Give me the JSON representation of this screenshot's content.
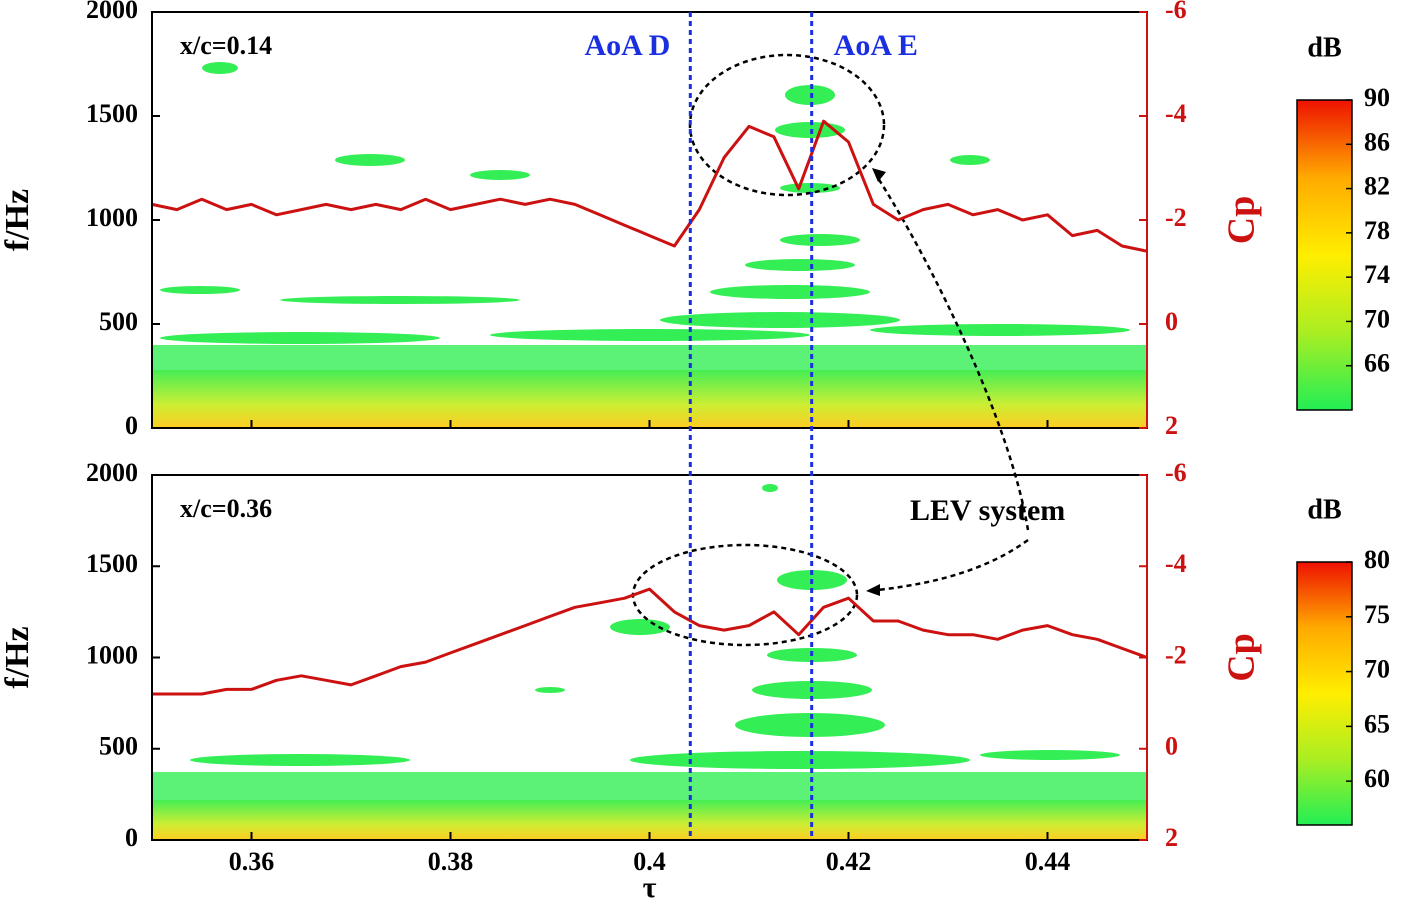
{
  "chart_data": [
    {
      "type": "spectrogram",
      "label": "x/c=0.14",
      "ylabel": "f/Hz",
      "y2label": "Cp",
      "xlim": [
        0.35,
        0.45
      ],
      "xticks": [
        0.36,
        0.38,
        0.4,
        0.42,
        0.44
      ],
      "ylim": [
        0,
        2000
      ],
      "yticks": [
        0,
        500,
        1000,
        1500,
        2000
      ],
      "y2lim": [
        2,
        -6
      ],
      "y2ticks": [
        2,
        0,
        -2,
        -4,
        -6
      ],
      "markers": [
        {
          "label": "AoA D",
          "x": 0.4041,
          "color": "#1a2fe0"
        },
        {
          "label": "AoA E",
          "x": 0.4163,
          "color": "#1a2fe0"
        }
      ],
      "series": [
        {
          "name": "Cp",
          "color": "#cc1111",
          "axis": "y2",
          "x": [
            0.35,
            0.3525,
            0.355,
            0.3575,
            0.36,
            0.3625,
            0.365,
            0.3675,
            0.37,
            0.3725,
            0.375,
            0.3775,
            0.38,
            0.3825,
            0.385,
            0.3875,
            0.39,
            0.3925,
            0.395,
            0.3975,
            0.4,
            0.4025,
            0.405,
            0.4075,
            0.41,
            0.4125,
            0.415,
            0.4175,
            0.42,
            0.4225,
            0.425,
            0.4275,
            0.43,
            0.4325,
            0.435,
            0.4375,
            0.44,
            0.4425,
            0.445,
            0.4475,
            0.45
          ],
          "values": [
            -2.3,
            -2.2,
            -2.4,
            -2.2,
            -2.3,
            -2.1,
            -2.2,
            -2.3,
            -2.2,
            -2.3,
            -2.2,
            -2.4,
            -2.2,
            -2.3,
            -2.4,
            -2.3,
            -2.4,
            -2.3,
            -2.1,
            -1.9,
            -1.7,
            -1.5,
            -2.2,
            -3.2,
            -3.8,
            -3.6,
            -2.6,
            -3.9,
            -3.5,
            -2.3,
            -2.0,
            -2.2,
            -2.3,
            -2.1,
            -2.2,
            -2.0,
            -2.1,
            -1.7,
            -1.8,
            -1.5,
            -1.4
          ]
        }
      ],
      "colorbar": {
        "title": "dB",
        "lim": [
          62,
          90
        ],
        "ticks": [
          66,
          70,
          74,
          78,
          82,
          86,
          90
        ],
        "colors": [
          "#22ee55",
          "#aaee22",
          "#ffee00",
          "#ffaa00",
          "#ee1100"
        ]
      }
    },
    {
      "type": "spectrogram",
      "label": "x/c=0.36",
      "ylabel": "f/Hz",
      "y2label": "Cp",
      "xlabel": "τ",
      "annotation": "LEV system",
      "xlim": [
        0.35,
        0.45
      ],
      "xticks": [
        0.36,
        0.38,
        0.4,
        0.42,
        0.44
      ],
      "ylim": [
        0,
        2000
      ],
      "yticks": [
        0,
        500,
        1000,
        1500,
        2000
      ],
      "y2lim": [
        2,
        -6
      ],
      "y2ticks": [
        2,
        0,
        -2,
        -4,
        -6
      ],
      "series": [
        {
          "name": "Cp",
          "color": "#cc1111",
          "axis": "y2",
          "x": [
            0.35,
            0.3525,
            0.355,
            0.3575,
            0.36,
            0.3625,
            0.365,
            0.3675,
            0.37,
            0.3725,
            0.375,
            0.3775,
            0.38,
            0.3825,
            0.385,
            0.3875,
            0.39,
            0.3925,
            0.395,
            0.3975,
            0.4,
            0.4025,
            0.405,
            0.4075,
            0.41,
            0.4125,
            0.415,
            0.4175,
            0.42,
            0.4225,
            0.425,
            0.4275,
            0.43,
            0.4325,
            0.435,
            0.4375,
            0.44,
            0.4425,
            0.445,
            0.4475,
            0.45
          ],
          "values": [
            -1.2,
            -1.2,
            -1.2,
            -1.3,
            -1.3,
            -1.5,
            -1.6,
            -1.5,
            -1.4,
            -1.6,
            -1.8,
            -1.9,
            -2.1,
            -2.3,
            -2.5,
            -2.7,
            -2.9,
            -3.1,
            -3.2,
            -3.3,
            -3.5,
            -3.0,
            -2.7,
            -2.6,
            -2.7,
            -3.0,
            -2.5,
            -3.1,
            -3.3,
            -2.8,
            -2.8,
            -2.6,
            -2.5,
            -2.5,
            -2.4,
            -2.6,
            -2.7,
            -2.5,
            -2.4,
            -2.2,
            -2.0
          ]
        }
      ],
      "colorbar": {
        "title": "dB",
        "lim": [
          56,
          80
        ],
        "ticks": [
          60,
          65,
          70,
          75,
          80
        ],
        "colors": [
          "#22ee55",
          "#aaee22",
          "#ffee00",
          "#ffaa00",
          "#ee1100"
        ]
      }
    }
  ]
}
